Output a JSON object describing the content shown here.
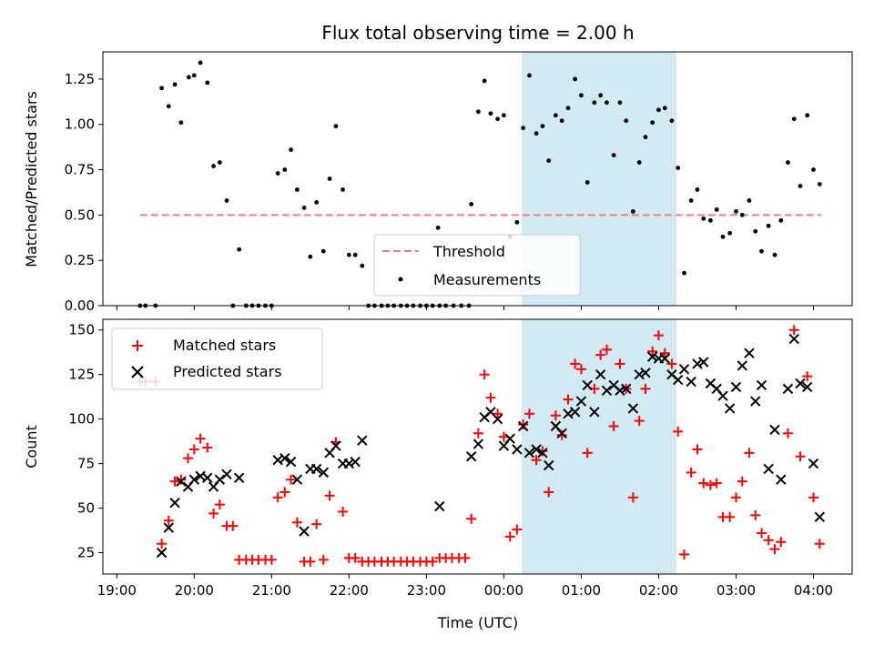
{
  "chart_data": {
    "type": "scatter",
    "title": "Flux total observing time = 2.00 h",
    "xlabel": "Time (UTC)",
    "x_tick_labels": [
      "19:00",
      "20:00",
      "21:00",
      "22:00",
      "23:00",
      "00:00",
      "01:00",
      "02:00",
      "03:00",
      "04:00"
    ],
    "x_tick_hours": [
      0,
      1,
      2,
      3,
      4,
      5,
      6,
      7,
      8,
      9
    ],
    "x_origin": "19:00",
    "xlim_hours": [
      -0.18,
      9.5
    ],
    "highlight_span_hours": [
      5.23,
      7.23
    ],
    "highlight_color": "#add8e6",
    "top": {
      "ylabel": "Matched/Predicted stars",
      "ylim": [
        0,
        1.4
      ],
      "y_ticks": [
        "0.00",
        "0.25",
        "0.50",
        "0.75",
        "1.00",
        "1.25"
      ],
      "threshold": {
        "name": "Threshold",
        "value": 0.5,
        "x_range_hours": [
          0.3,
          9.1
        ],
        "color": "#f08080"
      },
      "measurements_name": "Measurements",
      "measurements": [
        [
          0.3,
          0.0
        ],
        [
          0.37,
          0.0
        ],
        [
          0.5,
          0.0
        ],
        [
          0.58,
          1.2
        ],
        [
          0.67,
          1.1
        ],
        [
          0.75,
          1.22
        ],
        [
          0.83,
          1.01
        ],
        [
          0.93,
          1.26
        ],
        [
          1.0,
          1.27
        ],
        [
          1.08,
          1.34
        ],
        [
          1.17,
          1.23
        ],
        [
          1.25,
          0.77
        ],
        [
          1.33,
          0.79
        ],
        [
          1.42,
          0.58
        ],
        [
          1.5,
          0.0
        ],
        [
          1.58,
          0.31
        ],
        [
          1.67,
          0.0
        ],
        [
          1.75,
          0.0
        ],
        [
          1.83,
          0.0
        ],
        [
          1.92,
          0.0
        ],
        [
          2.0,
          0.0
        ],
        [
          2.08,
          0.73
        ],
        [
          2.17,
          0.75
        ],
        [
          2.25,
          0.86
        ],
        [
          2.33,
          0.64
        ],
        [
          2.42,
          0.54
        ],
        [
          2.5,
          0.27
        ],
        [
          2.58,
          0.57
        ],
        [
          2.67,
          0.3
        ],
        [
          2.75,
          0.7
        ],
        [
          2.83,
          0.99
        ],
        [
          2.92,
          0.64
        ],
        [
          3.0,
          0.28
        ],
        [
          3.08,
          0.28
        ],
        [
          3.17,
          0.22
        ],
        [
          3.25,
          0.0
        ],
        [
          3.33,
          0.0
        ],
        [
          3.42,
          0.0
        ],
        [
          3.5,
          0.0
        ],
        [
          3.58,
          0.0
        ],
        [
          3.67,
          0.0
        ],
        [
          3.75,
          0.0
        ],
        [
          3.83,
          0.0
        ],
        [
          3.92,
          0.0
        ],
        [
          4.0,
          0.0
        ],
        [
          4.08,
          0.0
        ],
        [
          4.17,
          0.0
        ],
        [
          4.15,
          0.43
        ],
        [
          4.25,
          0.0
        ],
        [
          4.35,
          0.0
        ],
        [
          4.45,
          0.0
        ],
        [
          4.55,
          0.0
        ],
        [
          4.58,
          0.56
        ],
        [
          4.67,
          1.07
        ],
        [
          4.75,
          1.24
        ],
        [
          4.83,
          1.06
        ],
        [
          4.92,
          1.03
        ],
        [
          5.0,
          1.05
        ],
        [
          5.08,
          0.38
        ],
        [
          5.17,
          0.46
        ],
        [
          5.25,
          0.98
        ],
        [
          5.33,
          1.27
        ],
        [
          5.42,
          0.95
        ],
        [
          5.5,
          0.99
        ],
        [
          5.58,
          0.8
        ],
        [
          5.67,
          1.05
        ],
        [
          5.75,
          1.02
        ],
        [
          5.83,
          1.09
        ],
        [
          5.92,
          1.25
        ],
        [
          6.0,
          1.16
        ],
        [
          6.08,
          0.68
        ],
        [
          6.17,
          1.12
        ],
        [
          6.25,
          1.16
        ],
        [
          6.33,
          1.12
        ],
        [
          6.42,
          0.83
        ],
        [
          6.5,
          1.12
        ],
        [
          6.58,
          1.02
        ],
        [
          6.67,
          0.52
        ],
        [
          6.75,
          0.79
        ],
        [
          6.83,
          0.93
        ],
        [
          6.92,
          1.01
        ],
        [
          7.0,
          1.08
        ],
        [
          7.08,
          1.09
        ],
        [
          7.17,
          1.02
        ],
        [
          7.25,
          0.76
        ],
        [
          7.33,
          0.18
        ],
        [
          7.42,
          0.58
        ],
        [
          7.5,
          0.64
        ],
        [
          7.58,
          0.48
        ],
        [
          7.67,
          0.47
        ],
        [
          7.75,
          0.53
        ],
        [
          7.83,
          0.38
        ],
        [
          7.92,
          0.4
        ],
        [
          8.0,
          0.52
        ],
        [
          8.08,
          0.5
        ],
        [
          8.17,
          0.58
        ],
        [
          8.25,
          0.41
        ],
        [
          8.33,
          0.3
        ],
        [
          8.42,
          0.44
        ],
        [
          8.5,
          0.28
        ],
        [
          8.58,
          0.47
        ],
        [
          8.67,
          0.79
        ],
        [
          8.75,
          1.03
        ],
        [
          8.83,
          0.66
        ],
        [
          8.92,
          1.05
        ],
        [
          9.0,
          0.75
        ],
        [
          9.08,
          0.67
        ]
      ]
    },
    "bottom": {
      "ylabel": "Count",
      "ylim": [
        13,
        156
      ],
      "y_ticks": [
        "25",
        "50",
        "75",
        "100",
        "125",
        "150"
      ],
      "series": [
        {
          "name": "Matched stars",
          "marker": "+",
          "color": "#ff0000",
          "points": [
            [
              0.3,
              121
            ],
            [
              0.37,
              121
            ],
            [
              0.5,
              121
            ],
            [
              0.58,
              30
            ],
            [
              0.67,
              43
            ],
            [
              0.75,
              65
            ],
            [
              0.83,
              66
            ],
            [
              0.92,
              78
            ],
            [
              1.0,
              83
            ],
            [
              1.08,
              89
            ],
            [
              1.17,
              84
            ],
            [
              1.25,
              47
            ],
            [
              1.33,
              52
            ],
            [
              1.42,
              40
            ],
            [
              1.5,
              40
            ],
            [
              1.58,
              21
            ],
            [
              1.67,
              21
            ],
            [
              1.75,
              21
            ],
            [
              1.83,
              21
            ],
            [
              1.92,
              21
            ],
            [
              2.0,
              21
            ],
            [
              2.08,
              56
            ],
            [
              2.17,
              59
            ],
            [
              2.25,
              66
            ],
            [
              2.33,
              42
            ],
            [
              2.42,
              20
            ],
            [
              2.5,
              20
            ],
            [
              2.58,
              41
            ],
            [
              2.67,
              21
            ],
            [
              2.75,
              57
            ],
            [
              2.83,
              87
            ],
            [
              2.92,
              48
            ],
            [
              3.0,
              22
            ],
            [
              3.08,
              22
            ],
            [
              3.17,
              20
            ],
            [
              3.25,
              20
            ],
            [
              3.33,
              20
            ],
            [
              3.42,
              20
            ],
            [
              3.5,
              20
            ],
            [
              3.58,
              20
            ],
            [
              3.67,
              20
            ],
            [
              3.75,
              20
            ],
            [
              3.83,
              20
            ],
            [
              3.92,
              20
            ],
            [
              4.0,
              20
            ],
            [
              4.08,
              20
            ],
            [
              4.17,
              22
            ],
            [
              4.25,
              22
            ],
            [
              4.33,
              22
            ],
            [
              4.42,
              22
            ],
            [
              4.5,
              22
            ],
            [
              4.58,
              44
            ],
            [
              4.67,
              92
            ],
            [
              4.75,
              125
            ],
            [
              4.83,
              112
            ],
            [
              4.92,
              103
            ],
            [
              5.0,
              90
            ],
            [
              5.08,
              34
            ],
            [
              5.17,
              38
            ],
            [
              5.25,
              97
            ],
            [
              5.33,
              103
            ],
            [
              5.42,
              77
            ],
            [
              5.5,
              82
            ],
            [
              5.58,
              59
            ],
            [
              5.67,
              102
            ],
            [
              5.75,
              91
            ],
            [
              5.83,
              111
            ],
            [
              5.92,
              131
            ],
            [
              6.0,
              128
            ],
            [
              6.08,
              81
            ],
            [
              6.17,
              117
            ],
            [
              6.25,
              136
            ],
            [
              6.33,
              139
            ],
            [
              6.42,
              96
            ],
            [
              6.5,
              131
            ],
            [
              6.58,
              117
            ],
            [
              6.67,
              56
            ],
            [
              6.75,
              99
            ],
            [
              6.83,
              117
            ],
            [
              6.92,
              138
            ],
            [
              7.0,
              147
            ],
            [
              7.08,
              137
            ],
            [
              7.17,
              131
            ],
            [
              7.25,
              93
            ],
            [
              7.33,
              24
            ],
            [
              7.42,
              70
            ],
            [
              7.5,
              83
            ],
            [
              7.58,
              64
            ],
            [
              7.67,
              63
            ],
            [
              7.75,
              64
            ],
            [
              7.83,
              45
            ],
            [
              7.92,
              45
            ],
            [
              8.0,
              56
            ],
            [
              8.08,
              65
            ],
            [
              8.17,
              81
            ],
            [
              8.25,
              46
            ],
            [
              8.33,
              36
            ],
            [
              8.42,
              32
            ],
            [
              8.5,
              27
            ],
            [
              8.58,
              31
            ],
            [
              8.67,
              92
            ],
            [
              8.75,
              150
            ],
            [
              8.83,
              79
            ],
            [
              8.92,
              124
            ],
            [
              9.0,
              56
            ],
            [
              9.08,
              30
            ]
          ]
        },
        {
          "name": "Predicted stars",
          "marker": "x",
          "color": "#000000",
          "points": [
            [
              0.58,
              25
            ],
            [
              0.67,
              39
            ],
            [
              0.75,
              53
            ],
            [
              0.83,
              65
            ],
            [
              0.92,
              62
            ],
            [
              1.0,
              66
            ],
            [
              1.08,
              68
            ],
            [
              1.17,
              67
            ],
            [
              1.25,
              62
            ],
            [
              1.33,
              66
            ],
            [
              1.42,
              69
            ],
            [
              1.58,
              67
            ],
            [
              2.08,
              77
            ],
            [
              2.17,
              78
            ],
            [
              2.25,
              76
            ],
            [
              2.33,
              66
            ],
            [
              2.42,
              37
            ],
            [
              2.5,
              72
            ],
            [
              2.58,
              72
            ],
            [
              2.67,
              70
            ],
            [
              2.75,
              81
            ],
            [
              2.83,
              85
            ],
            [
              2.92,
              75
            ],
            [
              3.0,
              75
            ],
            [
              3.08,
              76
            ],
            [
              3.17,
              88
            ],
            [
              4.17,
              51
            ],
            [
              4.58,
              79
            ],
            [
              4.67,
              86
            ],
            [
              4.75,
              101
            ],
            [
              4.83,
              104
            ],
            [
              4.92,
              100
            ],
            [
              5.0,
              85
            ],
            [
              5.08,
              89
            ],
            [
              5.17,
              83
            ],
            [
              5.25,
              96
            ],
            [
              5.33,
              81
            ],
            [
              5.42,
              83
            ],
            [
              5.5,
              81
            ],
            [
              5.58,
              74
            ],
            [
              5.67,
              96
            ],
            [
              5.75,
              92
            ],
            [
              5.83,
              103
            ],
            [
              5.92,
              104
            ],
            [
              6.0,
              110
            ],
            [
              6.08,
              119
            ],
            [
              6.17,
              104
            ],
            [
              6.25,
              125
            ],
            [
              6.33,
              116
            ],
            [
              6.42,
              119
            ],
            [
              6.5,
              116
            ],
            [
              6.58,
              117
            ],
            [
              6.67,
              106
            ],
            [
              6.75,
              125
            ],
            [
              6.83,
              126
            ],
            [
              6.92,
              135
            ],
            [
              7.0,
              134
            ],
            [
              7.08,
              134
            ],
            [
              7.17,
              125
            ],
            [
              7.25,
              122
            ],
            [
              7.33,
              128
            ],
            [
              7.42,
              121
            ],
            [
              7.5,
              131
            ],
            [
              7.58,
              132
            ],
            [
              7.67,
              120
            ],
            [
              7.75,
              117
            ],
            [
              7.83,
              113
            ],
            [
              7.92,
              106
            ],
            [
              8.0,
              118
            ],
            [
              8.08,
              130
            ],
            [
              8.17,
              137
            ],
            [
              8.25,
              110
            ],
            [
              8.33,
              119
            ],
            [
              8.42,
              72
            ],
            [
              8.5,
              94
            ],
            [
              8.58,
              66
            ],
            [
              8.67,
              117
            ],
            [
              8.75,
              145
            ],
            [
              8.83,
              120
            ],
            [
              8.92,
              118
            ],
            [
              9.0,
              75
            ],
            [
              9.08,
              45
            ]
          ]
        }
      ]
    }
  }
}
